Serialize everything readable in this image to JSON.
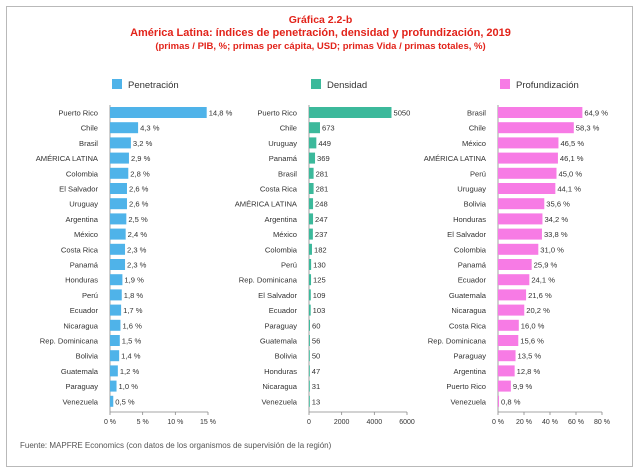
{
  "header": {
    "label": "Gráfica 2.2-b",
    "title": "América Latina: índices de penetración, densidad y profundización, 2019",
    "subtitle": "(primas / PIB, %; primas per cápita, USD; primas Vida / primas totales, %)"
  },
  "source": "Fuente: MAPFRE Economics (con datos de los organismos de supervisión de la región)",
  "colors": {
    "penetracion": "#4fb3e9",
    "densidad": "#3cb99b",
    "profundizacion": "#f77be5"
  },
  "chart_data": [
    {
      "type": "bar",
      "orientation": "horizontal",
      "legend": "Penetración",
      "unit": "%",
      "categories": [
        "Puerto Rico",
        "Chile",
        "Brasil",
        "AMÉRICA LATINA",
        "Colombia",
        "El Salvador",
        "Uruguay",
        "Argentina",
        "México",
        "Costa Rica",
        "Panamá",
        "Honduras",
        "Perú",
        "Ecuador",
        "Nicaragua",
        "Rep. Dominicana",
        "Bolivia",
        "Guatemala",
        "Paraguay",
        "Venezuela"
      ],
      "values": [
        14.8,
        4.3,
        3.2,
        2.9,
        2.8,
        2.6,
        2.6,
        2.5,
        2.4,
        2.3,
        2.3,
        1.9,
        1.8,
        1.7,
        1.6,
        1.5,
        1.4,
        1.2,
        1.0,
        0.5
      ],
      "value_labels": [
        "14,8 %",
        "4,3 %",
        "3,2 %",
        "2,9 %",
        "2,8 %",
        "2,6 %",
        "2,6 %",
        "2,5 %",
        "2,4 %",
        "2,3 %",
        "2,3 %",
        "1,9 %",
        "1,8 %",
        "1,7 %",
        "1,6 %",
        "1,5 %",
        "1,4 %",
        "1,2 %",
        "1,0 %",
        "0,5 %"
      ],
      "xlim": [
        0,
        15
      ],
      "ticks": [
        0,
        5,
        10,
        15
      ],
      "tick_labels": [
        "0 %",
        "5 %",
        "10 %",
        "15 %"
      ]
    },
    {
      "type": "bar",
      "orientation": "horizontal",
      "legend": "Densidad",
      "unit": "USD",
      "categories": [
        "Puerto Rico",
        "Chile",
        "Uruguay",
        "Panamá",
        "Brasil",
        "Costa Rica",
        "AMÉRICA LATINA",
        "Argentina",
        "México",
        "Colombia",
        "Perú",
        "Rep. Dominicana",
        "El Salvador",
        "Ecuador",
        "Paraguay",
        "Guatemala",
        "Bolivia",
        "Honduras",
        "Nicaragua",
        "Venezuela"
      ],
      "values": [
        5050,
        673,
        449,
        369,
        281,
        281,
        248,
        247,
        237,
        182,
        130,
        125,
        109,
        103,
        60,
        56,
        50,
        47,
        31,
        13
      ],
      "value_labels": [
        "5050",
        "673",
        "449",
        "369",
        "281",
        "281",
        "248",
        "247",
        "237",
        "182",
        "130",
        "125",
        "109",
        "103",
        "60",
        "56",
        "50",
        "47",
        "31",
        "13"
      ],
      "xlim": [
        0,
        6000
      ],
      "ticks": [
        0,
        2000,
        4000,
        6000
      ],
      "tick_labels": [
        "0",
        "2000",
        "4000",
        "6000"
      ]
    },
    {
      "type": "bar",
      "orientation": "horizontal",
      "legend": "Profundización",
      "unit": "%",
      "categories": [
        "Brasil",
        "Chile",
        "México",
        "AMÉRICA LATINA",
        "Perú",
        "Uruguay",
        "Bolivia",
        "Honduras",
        "El Salvador",
        "Colombia",
        "Panamá",
        "Ecuador",
        "Guatemala",
        "Nicaragua",
        "Costa Rica",
        "Rep. Dominicana",
        "Paraguay",
        "Argentina",
        "Puerto Rico",
        "Venezuela"
      ],
      "values": [
        64.9,
        58.3,
        46.5,
        46.1,
        45.0,
        44.1,
        35.6,
        34.2,
        33.8,
        31.0,
        25.9,
        24.1,
        21.6,
        20.2,
        16.0,
        15.6,
        13.5,
        12.8,
        9.9,
        0.8
      ],
      "value_labels": [
        "64,9 %",
        "58,3 %",
        "46,5 %",
        "46,1 %",
        "45,0 %",
        "44,1 %",
        "35,6 %",
        "34,2 %",
        "33,8 %",
        "31,0 %",
        "25,9 %",
        "24,1 %",
        "21,6 %",
        "20,2 %",
        "16,0 %",
        "15,6 %",
        "13,5 %",
        "12,8 %",
        "9,9 %",
        "0,8 %"
      ],
      "xlim": [
        0,
        80
      ],
      "ticks": [
        0,
        20,
        40,
        60,
        80
      ],
      "tick_labels": [
        "0 %",
        "20 %",
        "40 %",
        "60 %",
        "80 %"
      ]
    }
  ]
}
